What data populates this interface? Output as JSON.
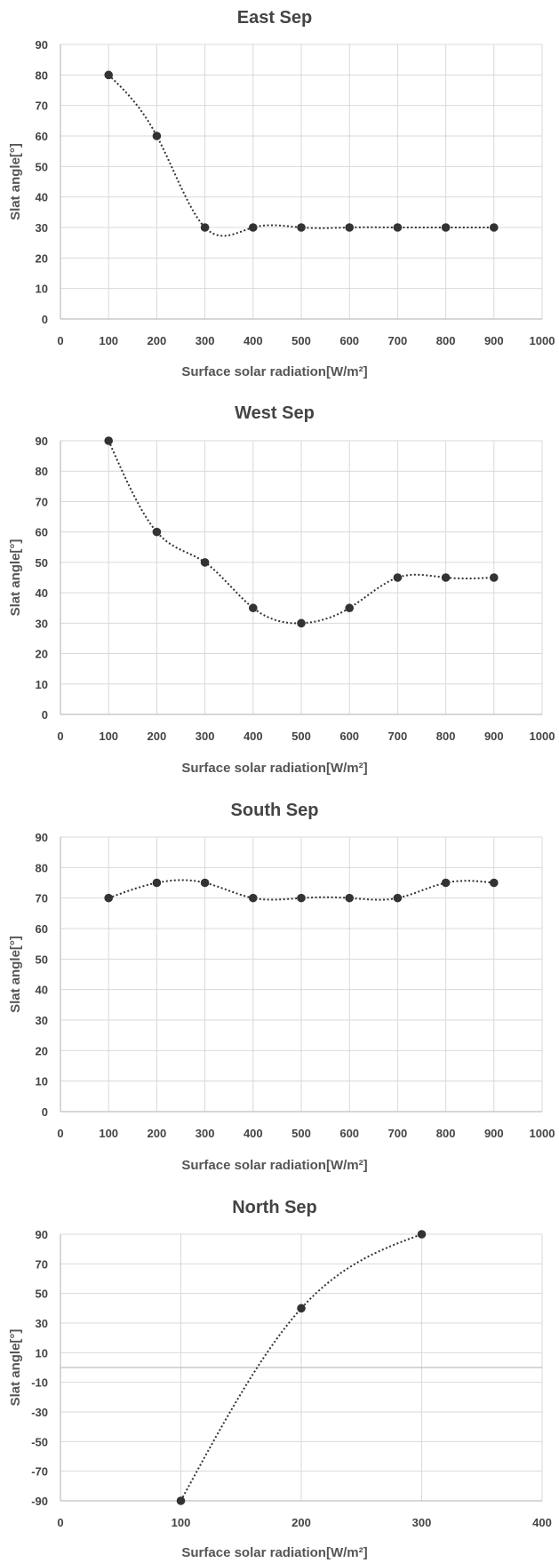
{
  "chart_data": [
    {
      "type": "scatter",
      "title": "East Sep",
      "xlabel": "Surface solar radiation[W/m²]",
      "ylabel": "Slat angle[°]",
      "xlim": [
        0,
        1000
      ],
      "ylim": [
        0,
        90
      ],
      "xticks": [
        0,
        100,
        200,
        300,
        400,
        500,
        600,
        700,
        800,
        900,
        1000
      ],
      "yticks": [
        0,
        10,
        20,
        30,
        40,
        50,
        60,
        70,
        80,
        90
      ],
      "grid": true,
      "series": [
        {
          "x": [
            100,
            200,
            300,
            400,
            500,
            600,
            700,
            800,
            900
          ],
          "y": [
            80,
            60,
            30,
            30,
            30,
            30,
            30,
            30,
            30
          ]
        }
      ],
      "trendline": "polynomial (dotted)"
    },
    {
      "type": "scatter",
      "title": "West Sep",
      "xlabel": "Surface solar radiation[W/m²]",
      "ylabel": "Slat angle[°]",
      "xlim": [
        0,
        1000
      ],
      "ylim": [
        0,
        90
      ],
      "xticks": [
        0,
        100,
        200,
        300,
        400,
        500,
        600,
        700,
        800,
        900,
        1000
      ],
      "yticks": [
        0,
        10,
        20,
        30,
        40,
        50,
        60,
        70,
        80,
        90
      ],
      "grid": true,
      "series": [
        {
          "x": [
            100,
            200,
            300,
            400,
            500,
            600,
            700,
            800,
            900
          ],
          "y": [
            90,
            60,
            50,
            35,
            30,
            35,
            45,
            45,
            45
          ]
        }
      ],
      "trendline": "polynomial (dotted)"
    },
    {
      "type": "scatter",
      "title": "South Sep",
      "xlabel": "Surface solar radiation[W/m²]",
      "ylabel": "Slat angle[°]",
      "xlim": [
        0,
        1000
      ],
      "ylim": [
        0,
        90
      ],
      "xticks": [
        0,
        100,
        200,
        300,
        400,
        500,
        600,
        700,
        800,
        900,
        1000
      ],
      "yticks": [
        0,
        10,
        20,
        30,
        40,
        50,
        60,
        70,
        80,
        90
      ],
      "grid": true,
      "series": [
        {
          "x": [
            100,
            200,
            300,
            400,
            500,
            600,
            700,
            800,
            900
          ],
          "y": [
            70,
            75,
            75,
            70,
            70,
            70,
            70,
            75,
            75
          ]
        }
      ],
      "trendline": "polynomial (dotted)"
    },
    {
      "type": "scatter",
      "title": "North Sep",
      "xlabel": "Surface solar radiation[W/m²]",
      "ylabel": "Slat angle[°]",
      "xlim": [
        0,
        400
      ],
      "ylim": [
        -90,
        90
      ],
      "xticks": [
        0,
        100,
        200,
        300,
        400
      ],
      "yticks": [
        -90,
        -70,
        -50,
        -30,
        -10,
        10,
        30,
        50,
        70,
        90
      ],
      "grid": true,
      "series": [
        {
          "x": [
            100,
            200,
            300
          ],
          "y": [
            -90,
            40,
            90
          ]
        }
      ],
      "trendline": "polynomial (dotted)"
    }
  ]
}
